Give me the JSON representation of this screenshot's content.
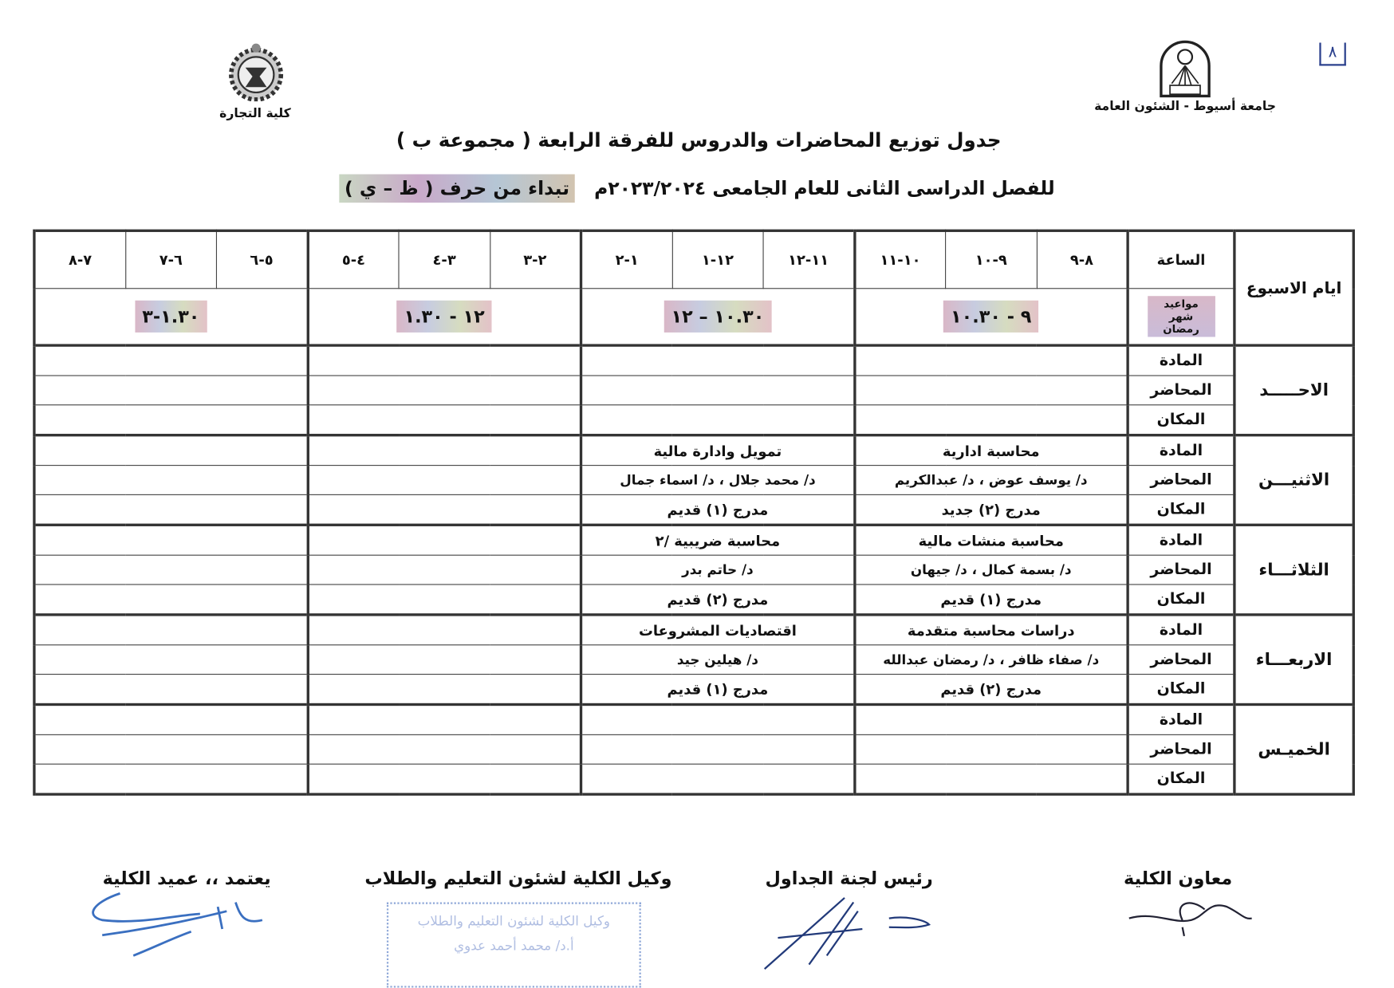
{
  "page_number": "٨",
  "header": {
    "university_logo_text": "جامعة أسيوط",
    "university_caption": "جامعة أسيوط - الشئون العامة",
    "faculty_caption": "كلية التجارة"
  },
  "title": "جدول توزيع المحاضرات والدروس للفرقة الرابعة ( مجموعة ب )",
  "subtitle": {
    "main": "للفصل الدراسى الثانى للعام الجامعى ٢٠٢٣/٢٠٢٤م",
    "highlight": "تبداء من حرف ( ظ – ي )"
  },
  "table": {
    "days_header": "ايام الاسبوع",
    "hour_header": "الساعة",
    "ramadan_label": "مواعيد شهر رمضان",
    "slots": [
      "٨-٩",
      "٩-١٠",
      "١٠-١١",
      "١١-١٢",
      "١٢-١",
      "١-٢",
      "٢-٣",
      "٣-٤",
      "٤-٥",
      "٥-٦",
      "٦-٧",
      "٧-٨"
    ],
    "ramadan_times": [
      "٩ - ١٠.٣٠",
      "١٠.٣٠ – ١٢",
      "١٢ - ١.٣٠",
      "١.٣٠-٣"
    ],
    "row_labels": [
      "المادة",
      "المحاضر",
      "المكان"
    ],
    "days": [
      {
        "name": "الاحـــــد",
        "blocks": [
          [
            "",
            "",
            ""
          ],
          [
            "",
            "",
            ""
          ],
          [
            "",
            "",
            ""
          ],
          [
            "",
            "",
            ""
          ]
        ]
      },
      {
        "name": "الاثنيـــن",
        "blocks": [
          [
            "محاسبة ادارية",
            "د/ يوسف عوض ، د/ عبدالكريم",
            "مدرج (٢) جديد"
          ],
          [
            "تمويل وادارة مالية",
            "د/ محمد جلال ، د/ اسماء جمال",
            "مدرج (١) قديم"
          ],
          [
            "",
            "",
            ""
          ],
          [
            "",
            "",
            ""
          ]
        ]
      },
      {
        "name": "الثلاثـــاء",
        "blocks": [
          [
            "محاسبة منشات مالية",
            "د/ بسمة كمال ، د/ جيهان",
            "مدرج (١) قديم"
          ],
          [
            "محاسبة ضريبية /٢",
            "د/ حاتم بدر",
            "مدرج (٢) قديم"
          ],
          [
            "",
            "",
            ""
          ],
          [
            "",
            "",
            ""
          ]
        ]
      },
      {
        "name": "الاربعـــاء",
        "blocks": [
          [
            "دراسات محاسبة متقدمة",
            "د/ صفاء ظافر ، د/ رمضان عبدالله",
            "مدرج (٢) قديم"
          ],
          [
            "اقتصاديات المشروعات",
            "د/ هيلين جيد",
            "مدرج (١) قديم"
          ],
          [
            "",
            "",
            ""
          ],
          [
            "",
            "",
            ""
          ]
        ]
      },
      {
        "name": "الخميـس",
        "blocks": [
          [
            "",
            "",
            ""
          ],
          [
            "",
            "",
            ""
          ],
          [
            "",
            "",
            ""
          ],
          [
            "",
            "",
            ""
          ]
        ]
      }
    ]
  },
  "signatures": {
    "assistant": "معاون الكلية",
    "committee_head": "رئيس لجنة الجداول",
    "vice_dean": "وكيل الكلية لشئون التعليم والطلاب",
    "dean": "يعتمد ،، عميد الكلية",
    "stamp_line1": "وكيل الكلية لشئون التعليم والطلاب",
    "stamp_line2": "أ.د/ محمد أحمد عدوي"
  }
}
